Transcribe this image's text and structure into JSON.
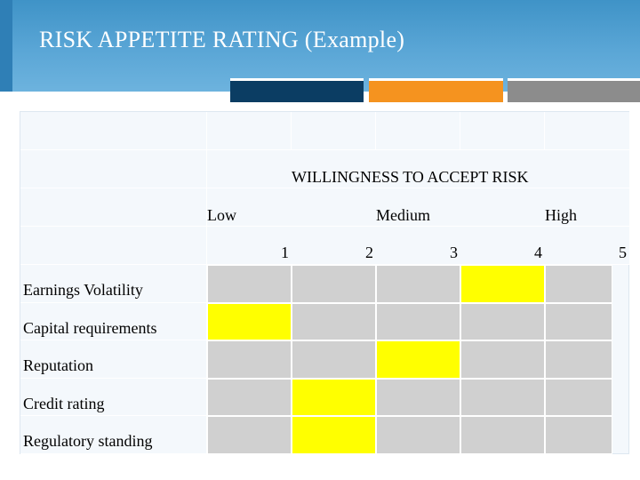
{
  "slide": {
    "title": "RISK APPETITE RATING (Example)",
    "colors": {
      "header": "#4a9bcf",
      "accent_blue": "#0b3d63",
      "accent_orange": "#f5931f",
      "accent_gray": "#8c8c8c",
      "selected": "#ffff00",
      "unselected": "#d0d0d0"
    }
  },
  "table": {
    "heading": "WILLINGNESS TO ACCEPT RISK",
    "scale_labels": {
      "low": "Low",
      "medium": "Medium",
      "high": "High"
    },
    "scale_numbers": [
      "1",
      "2",
      "3",
      "4",
      "5"
    ],
    "rows": [
      {
        "label": "Earnings Volatility",
        "rating": 4
      },
      {
        "label": "Capital requirements",
        "rating": 1
      },
      {
        "label": "Reputation",
        "rating": 3
      },
      {
        "label": "Credit rating",
        "rating": 2
      },
      {
        "label": "Regulatory standing",
        "rating": 2
      }
    ]
  }
}
